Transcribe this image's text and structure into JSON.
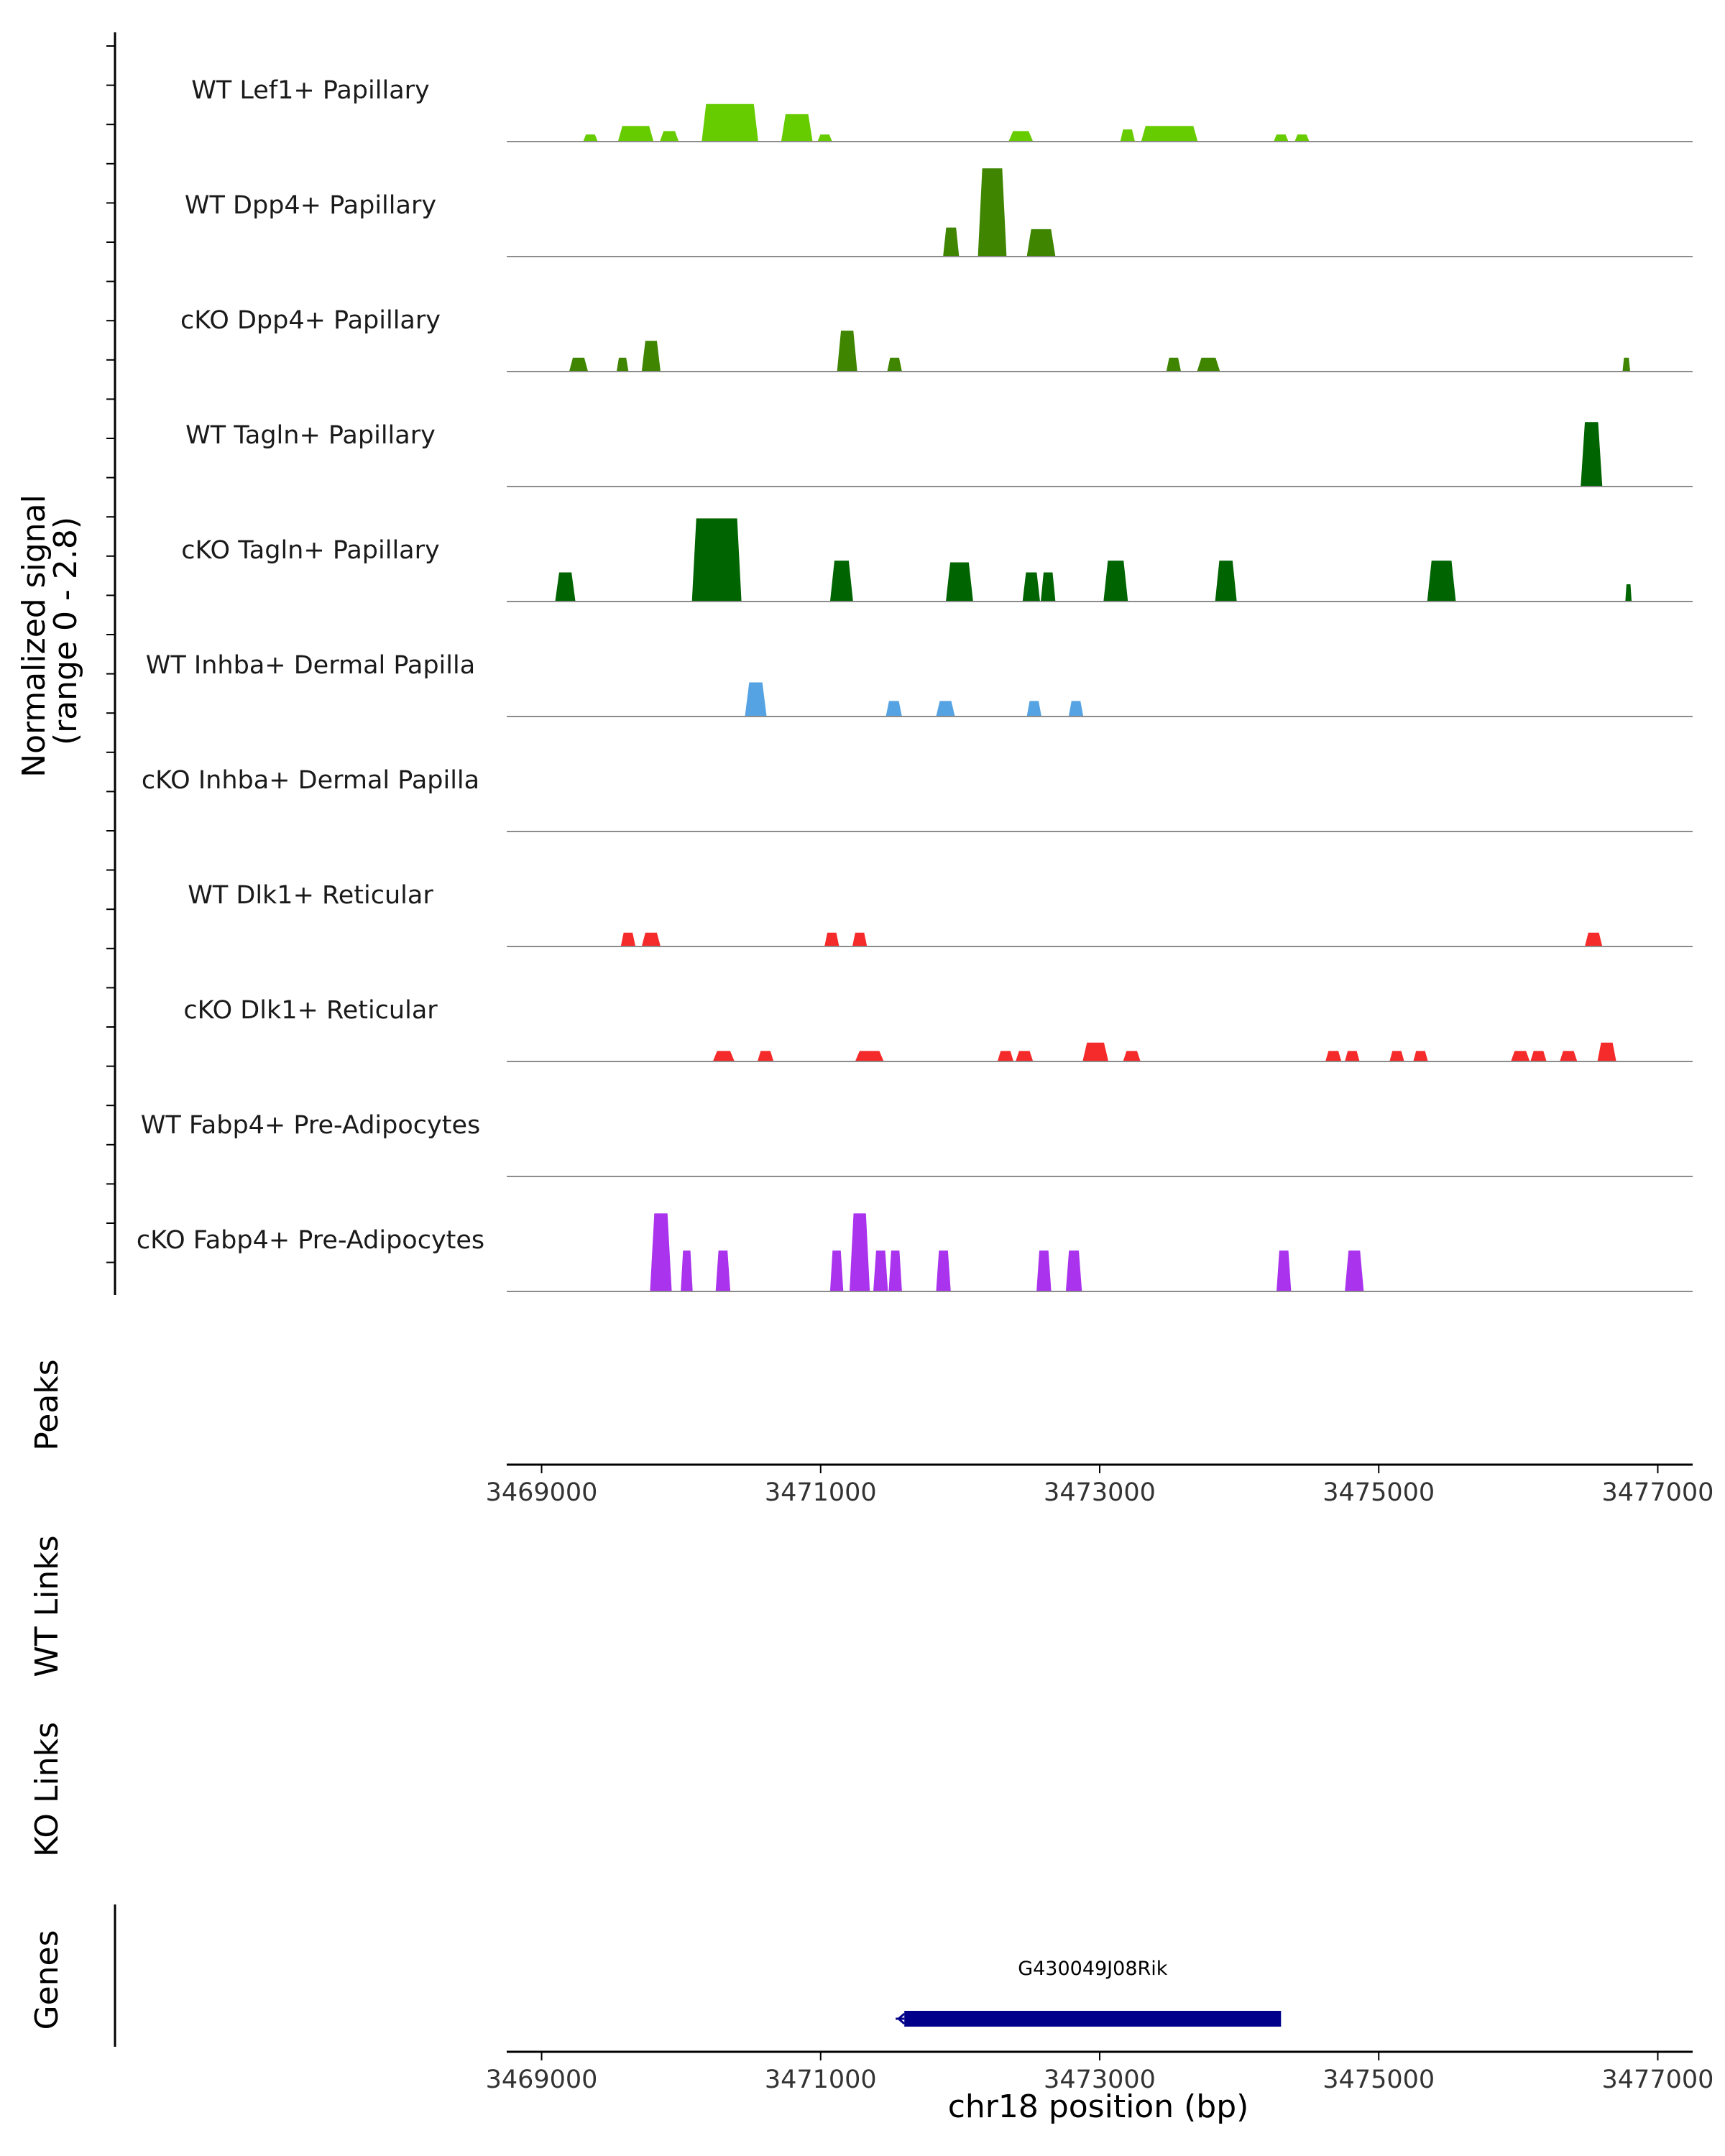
{
  "chart_data": {
    "type": "area",
    "title": "",
    "xlabel": "chr18 position (bp)",
    "ylabel": "Normalized signal\n(range 0 - 2.8)",
    "ylabel_lines": [
      "Normalized signal",
      "(range 0 - 2.8)"
    ],
    "xlim": [
      3468750,
      3477250
    ],
    "ylim": [
      0,
      2.8
    ],
    "xticks": [
      3469000,
      3471000,
      3473000,
      3475000,
      3477000
    ],
    "xtick_labels": [
      "3469000",
      "3471000",
      "3473000",
      "3475000",
      "3477000"
    ],
    "panel_titles": {
      "peaks": "Peaks",
      "wt_links": "WT Links",
      "ko_links": "KO Links",
      "genes": "Genes"
    },
    "tracks": [
      {
        "name": "WT Lef1+ Papillary",
        "color": "#66cc00",
        "regions": [
          {
            "start": 3469300,
            "end": 3469400,
            "peak": 0.2
          },
          {
            "start": 3469550,
            "end": 3469800,
            "peak": 0.45
          },
          {
            "start": 3469850,
            "end": 3469980,
            "peak": 0.3
          },
          {
            "start": 3470150,
            "end": 3470550,
            "peak": 1.1
          },
          {
            "start": 3470720,
            "end": 3470940,
            "peak": 0.8
          },
          {
            "start": 3470980,
            "end": 3471080,
            "peak": 0.2
          },
          {
            "start": 3472350,
            "end": 3472520,
            "peak": 0.3
          },
          {
            "start": 3473150,
            "end": 3473250,
            "peak": 0.35
          },
          {
            "start": 3473300,
            "end": 3473700,
            "peak": 0.45
          },
          {
            "start": 3474250,
            "end": 3474350,
            "peak": 0.2
          },
          {
            "start": 3474400,
            "end": 3474500,
            "peak": 0.2
          }
        ]
      },
      {
        "name": "WT Dpp4+ Papillary",
        "color": "#3f8500",
        "regions": [
          {
            "start": 3471880,
            "end": 3471990,
            "peak": 0.85
          },
          {
            "start": 3472130,
            "end": 3472330,
            "peak": 2.6
          },
          {
            "start": 3472480,
            "end": 3472680,
            "peak": 0.8
          }
        ]
      },
      {
        "name": "cKO Dpp4+ Papillary",
        "color": "#3f8500",
        "regions": [
          {
            "start": 3469200,
            "end": 3469330,
            "peak": 0.4
          },
          {
            "start": 3469540,
            "end": 3469620,
            "peak": 0.4
          },
          {
            "start": 3469720,
            "end": 3469850,
            "peak": 0.9
          },
          {
            "start": 3471120,
            "end": 3471260,
            "peak": 1.2
          },
          {
            "start": 3471480,
            "end": 3471580,
            "peak": 0.4
          },
          {
            "start": 3473480,
            "end": 3473580,
            "peak": 0.4
          },
          {
            "start": 3473700,
            "end": 3473860,
            "peak": 0.4
          },
          {
            "start": 3476750,
            "end": 3476800,
            "peak": 0.4
          }
        ]
      },
      {
        "name": "WT Tagln+ Papillary",
        "color": "#006400",
        "regions": [
          {
            "start": 3476450,
            "end": 3476600,
            "peak": 1.9
          }
        ]
      },
      {
        "name": "cKO Tagln+ Papillary",
        "color": "#006400",
        "regions": [
          {
            "start": 3469100,
            "end": 3469240,
            "peak": 0.85
          },
          {
            "start": 3470080,
            "end": 3470430,
            "peak": 2.45
          },
          {
            "start": 3471070,
            "end": 3471230,
            "peak": 1.2
          },
          {
            "start": 3471900,
            "end": 3472090,
            "peak": 1.15
          },
          {
            "start": 3472450,
            "end": 3472570,
            "peak": 0.85
          },
          {
            "start": 3472580,
            "end": 3472680,
            "peak": 0.85
          },
          {
            "start": 3473030,
            "end": 3473200,
            "peak": 1.2
          },
          {
            "start": 3473830,
            "end": 3473980,
            "peak": 1.2
          },
          {
            "start": 3475350,
            "end": 3475550,
            "peak": 1.2
          },
          {
            "start": 3476770,
            "end": 3476810,
            "peak": 0.5
          }
        ]
      },
      {
        "name": "WT Inhba+ Dermal Papilla",
        "color": "#56a3e3",
        "regions": [
          {
            "start": 3470460,
            "end": 3470610,
            "peak": 1.0
          },
          {
            "start": 3471470,
            "end": 3471580,
            "peak": 0.45
          },
          {
            "start": 3471830,
            "end": 3471960,
            "peak": 0.45
          },
          {
            "start": 3472480,
            "end": 3472580,
            "peak": 0.45
          },
          {
            "start": 3472780,
            "end": 3472880,
            "peak": 0.45
          }
        ]
      },
      {
        "name": "cKO Inhba+ Dermal Papilla",
        "color": "#56a3e3",
        "regions": []
      },
      {
        "name": "WT Dlk1+ Reticular",
        "color": "#f52a2a",
        "regions": [
          {
            "start": 3469570,
            "end": 3469670,
            "peak": 0.4
          },
          {
            "start": 3469720,
            "end": 3469850,
            "peak": 0.4
          },
          {
            "start": 3471030,
            "end": 3471130,
            "peak": 0.4
          },
          {
            "start": 3471230,
            "end": 3471330,
            "peak": 0.4
          },
          {
            "start": 3476480,
            "end": 3476600,
            "peak": 0.4
          }
        ]
      },
      {
        "name": "cKO Dlk1+ Reticular",
        "color": "#f52a2a",
        "regions": [
          {
            "start": 3470230,
            "end": 3470380,
            "peak": 0.3
          },
          {
            "start": 3470550,
            "end": 3470660,
            "peak": 0.3
          },
          {
            "start": 3471250,
            "end": 3471450,
            "peak": 0.3
          },
          {
            "start": 3472270,
            "end": 3472380,
            "peak": 0.3
          },
          {
            "start": 3472400,
            "end": 3472520,
            "peak": 0.3
          },
          {
            "start": 3472880,
            "end": 3473060,
            "peak": 0.55
          },
          {
            "start": 3473170,
            "end": 3473290,
            "peak": 0.3
          },
          {
            "start": 3474620,
            "end": 3474730,
            "peak": 0.3
          },
          {
            "start": 3474760,
            "end": 3474860,
            "peak": 0.3
          },
          {
            "start": 3475080,
            "end": 3475180,
            "peak": 0.3
          },
          {
            "start": 3475250,
            "end": 3475350,
            "peak": 0.3
          },
          {
            "start": 3475950,
            "end": 3476080,
            "peak": 0.3
          },
          {
            "start": 3476090,
            "end": 3476200,
            "peak": 0.3
          },
          {
            "start": 3476300,
            "end": 3476420,
            "peak": 0.3
          },
          {
            "start": 3476570,
            "end": 3476700,
            "peak": 0.55
          }
        ]
      },
      {
        "name": "WT Fabp4+ Pre-Adipocytes",
        "color": "#aa33ee",
        "regions": []
      },
      {
        "name": "cKO Fabp4+ Pre-Adipocytes",
        "color": "#aa33ee",
        "regions": [
          {
            "start": 3469780,
            "end": 3469930,
            "peak": 2.3
          },
          {
            "start": 3470000,
            "end": 3470080,
            "peak": 1.2
          },
          {
            "start": 3470250,
            "end": 3470350,
            "peak": 1.2
          },
          {
            "start": 3471070,
            "end": 3471160,
            "peak": 1.2
          },
          {
            "start": 3471210,
            "end": 3471350,
            "peak": 2.3
          },
          {
            "start": 3471380,
            "end": 3471480,
            "peak": 1.2
          },
          {
            "start": 3471490,
            "end": 3471580,
            "peak": 1.2
          },
          {
            "start": 3471830,
            "end": 3471930,
            "peak": 1.2
          },
          {
            "start": 3472550,
            "end": 3472650,
            "peak": 1.2
          },
          {
            "start": 3472760,
            "end": 3472870,
            "peak": 1.2
          },
          {
            "start": 3474270,
            "end": 3474370,
            "peak": 1.2
          },
          {
            "start": 3474760,
            "end": 3474890,
            "peak": 1.2
          }
        ]
      }
    ],
    "genes": [
      {
        "name": "G430049J08Rik",
        "start": 3471600,
        "end": 3474300,
        "strand": "-",
        "color": "#00008b"
      }
    ]
  }
}
